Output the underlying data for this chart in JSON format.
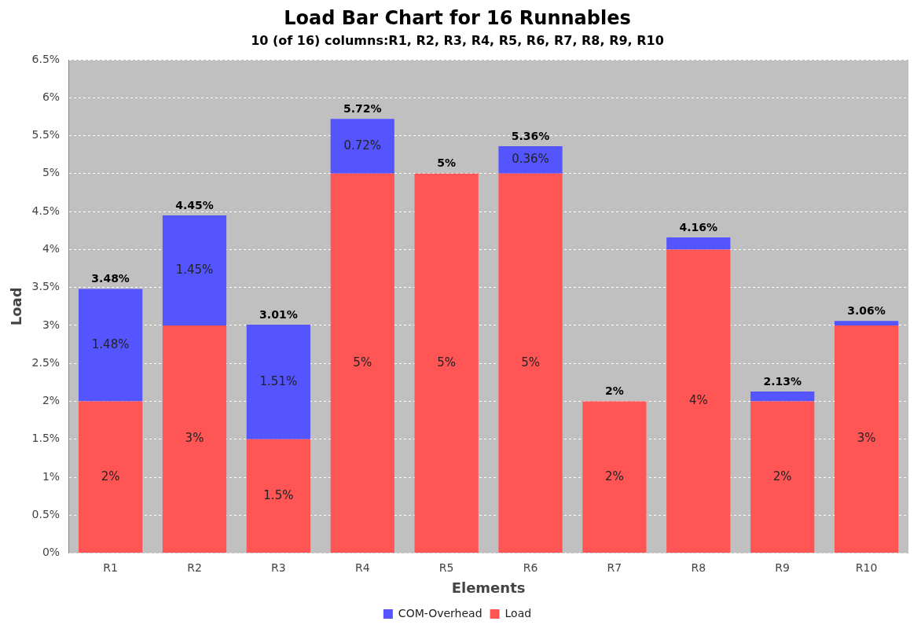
{
  "chart_data": {
    "type": "bar",
    "title": "Load Bar Chart for 16 Runnables",
    "subtitle": "10 (of 16) columns:R1, R2, R3, R4, R5, R6, R7, R8, R9, R10",
    "xlabel": "Elements",
    "ylabel": "Load",
    "categories": [
      "R1",
      "R2",
      "R3",
      "R4",
      "R5",
      "R6",
      "R7",
      "R8",
      "R9",
      "R10"
    ],
    "stacked": true,
    "series": [
      {
        "name": "Load",
        "color": "#ff5555",
        "values": [
          2,
          3,
          1.5,
          5,
          5,
          5,
          2,
          4,
          2,
          3
        ],
        "value_labels": [
          "2%",
          "3%",
          "1.5%",
          "5%",
          "5%",
          "5%",
          "2%",
          "4%",
          "2%",
          "3%"
        ]
      },
      {
        "name": "COM-Overhead",
        "color": "#5555ff",
        "values": [
          1.48,
          1.45,
          1.51,
          0.72,
          null,
          0.36,
          null,
          0.16,
          0.13,
          0.06
        ],
        "value_labels": [
          "1.48%",
          "1.45%",
          "1.51%",
          "0.72%",
          null,
          "0.36%",
          null,
          null,
          null,
          null
        ]
      }
    ],
    "totals": [
      "3.48%",
      "4.45%",
      "3.01%",
      "5.72%",
      "5%",
      "5.36%",
      "2%",
      "4.16%",
      "2.13%",
      "3.06%"
    ],
    "ylim": [
      0,
      6.5
    ],
    "yticks": [
      {
        "value": 0,
        "label": "0%"
      },
      {
        "value": 0.5,
        "label": "0.5%"
      },
      {
        "value": 1,
        "label": "1%"
      },
      {
        "value": 1.5,
        "label": "1.5%"
      },
      {
        "value": 2,
        "label": "2%"
      },
      {
        "value": 2.5,
        "label": "2.5%"
      },
      {
        "value": 3,
        "label": "3%"
      },
      {
        "value": 3.5,
        "label": "3.5%"
      },
      {
        "value": 4,
        "label": "4%"
      },
      {
        "value": 4.5,
        "label": "4.5%"
      },
      {
        "value": 5,
        "label": "5%"
      },
      {
        "value": 5.5,
        "label": "5.5%"
      },
      {
        "value": 6,
        "label": "6%"
      },
      {
        "value": 6.5,
        "label": "6.5%"
      }
    ],
    "grid": "y",
    "legend": "bottom"
  }
}
